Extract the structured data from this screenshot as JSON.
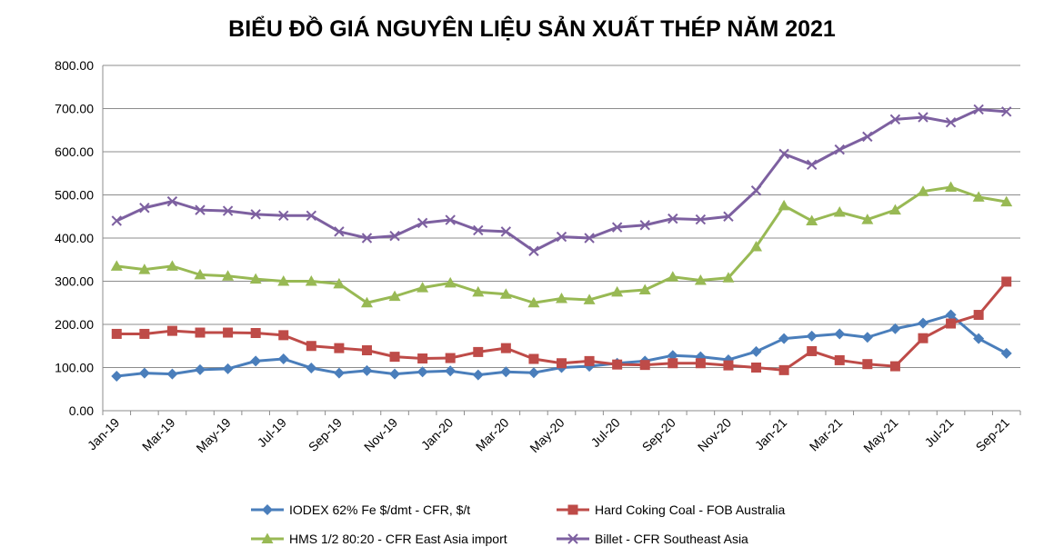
{
  "chart_data": {
    "type": "line",
    "title": "BIỂU ĐỒ GIÁ NGUYÊN LIỆU SẢN XUẤT THÉP NĂM 2021",
    "xlabel": "",
    "ylabel": "",
    "ylim": [
      0,
      800
    ],
    "yticks": [
      "0.00",
      "100.00",
      "200.00",
      "300.00",
      "400.00",
      "500.00",
      "600.00",
      "700.00",
      "800.00"
    ],
    "grid": true,
    "legend_position": "bottom",
    "categories": [
      "Jan-19",
      "Feb-19",
      "Mar-19",
      "Apr-19",
      "May-19",
      "Jun-19",
      "Jul-19",
      "Aug-19",
      "Sep-19",
      "Oct-19",
      "Nov-19",
      "Dec-19",
      "Jan-20",
      "Feb-20",
      "Mar-20",
      "Apr-20",
      "May-20",
      "Jun-20",
      "Jul-20",
      "Aug-20",
      "Sep-20",
      "Oct-20",
      "Nov-20",
      "Dec-20",
      "Jan-21",
      "Feb-21",
      "Mar-21",
      "Apr-21",
      "May-21",
      "Jun-21",
      "Jul-21",
      "Aug-21",
      "Sep-21"
    ],
    "xtick_labels": [
      "Jan-19",
      "Mar-19",
      "May-19",
      "Jul-19",
      "Sep-19",
      "Nov-19",
      "Jan-20",
      "Mar-20",
      "May-20",
      "Jul-20",
      "Sep-20",
      "Nov-20",
      "Jan-21",
      "Mar-21",
      "May-21",
      "Jul-21",
      "Sep-21"
    ],
    "series": [
      {
        "name": "IODEX 62% Fe $/dmt - CFR, $/t",
        "color": "#4a7ebb",
        "marker": "diamond",
        "values": [
          80,
          87,
          85,
          95,
          97,
          115,
          120,
          99,
          87,
          93,
          85,
          90,
          92,
          83,
          90,
          88,
          100,
          103,
          110,
          115,
          128,
          125,
          118,
          137,
          167,
          173,
          178,
          170,
          190,
          203,
          222,
          167,
          133
        ]
      },
      {
        "name": "Hard Coking Coal - FOB Australia",
        "color": "#be4b48",
        "marker": "square",
        "values": [
          178,
          178,
          185,
          181,
          181,
          180,
          175,
          150,
          145,
          140,
          125,
          121,
          122,
          136,
          145,
          120,
          110,
          115,
          107,
          106,
          110,
          110,
          105,
          100,
          94,
          138,
          117,
          108,
          103,
          168,
          202,
          222,
          299
        ]
      },
      {
        "name": "HMS 1/2 80:20 - CFR East Asia import",
        "color": "#98b954",
        "marker": "triangle",
        "values": [
          335,
          327,
          335,
          315,
          312,
          305,
          300,
          300,
          294,
          250,
          265,
          285,
          296,
          275,
          270,
          250,
          260,
          257,
          275,
          280,
          310,
          302,
          308,
          380,
          475,
          440,
          460,
          443,
          465,
          508,
          518,
          495,
          484
        ]
      },
      {
        "name": "Billet - CFR Southeast Asia",
        "color": "#7d60a0",
        "marker": "x",
        "values": [
          440,
          470,
          485,
          465,
          463,
          455,
          452,
          452,
          415,
          400,
          405,
          435,
          442,
          418,
          415,
          370,
          403,
          400,
          425,
          430,
          445,
          443,
          450,
          510,
          595,
          570,
          605,
          635,
          675,
          680,
          668,
          698,
          693
        ]
      }
    ]
  }
}
